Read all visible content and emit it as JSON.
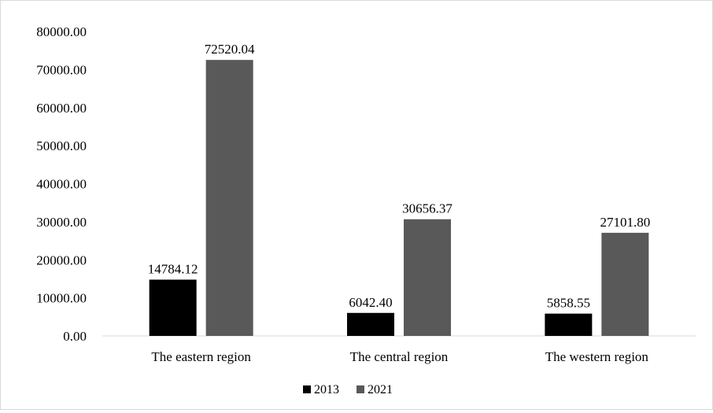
{
  "chart_data": {
    "type": "bar",
    "categories": [
      "The eastern region",
      "The central region",
      "The western region"
    ],
    "series": [
      {
        "name": "2013",
        "values": [
          14784.12,
          6042.4,
          5858.55
        ],
        "labels": [
          "14784.12",
          "6042.40",
          "5858.55"
        ],
        "color": "#000000"
      },
      {
        "name": "2021",
        "values": [
          72520.04,
          30656.37,
          27101.8
        ],
        "labels": [
          "72520.04",
          "30656.37",
          "27101.80"
        ],
        "color": "#595959"
      }
    ],
    "ylim": [
      0,
      80000
    ],
    "yticks": [
      0,
      10000,
      20000,
      30000,
      40000,
      50000,
      60000,
      70000,
      80000
    ],
    "ytick_labels": [
      "0.00",
      "10000.00",
      "20000.00",
      "30000.00",
      "40000.00",
      "50000.00",
      "60000.00",
      "70000.00",
      "80000.00"
    ],
    "grid": false,
    "legend_position": "bottom",
    "title": "",
    "xlabel": "",
    "ylabel": ""
  }
}
